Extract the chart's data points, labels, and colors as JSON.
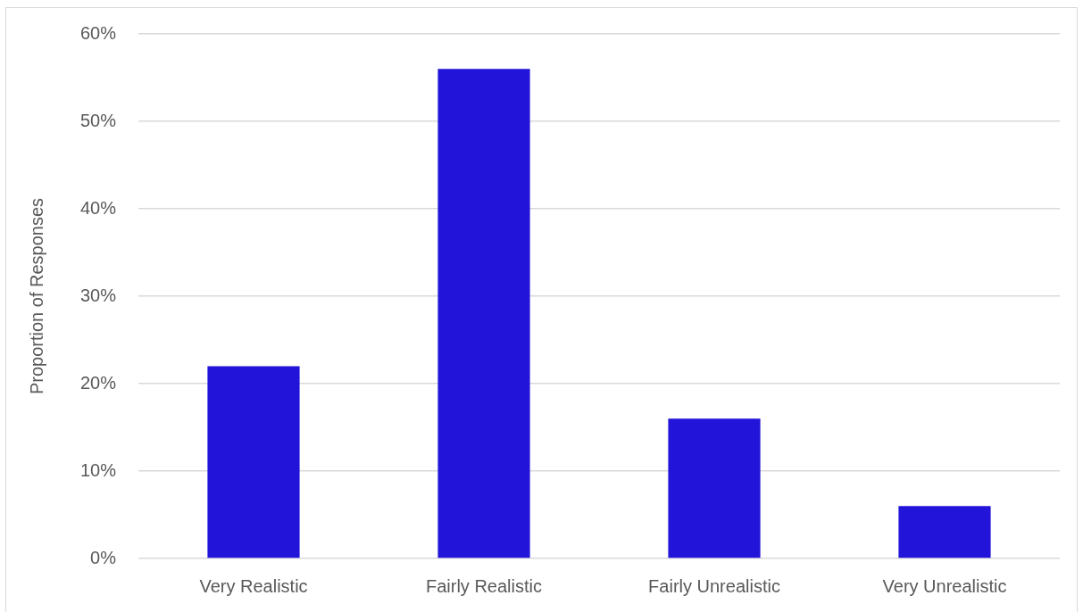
{
  "chart_data": {
    "type": "bar",
    "ylabel": "Proportion of Responses",
    "categories": [
      "Very Realistic",
      "Fairly Realistic",
      "Fairly Unrealistic",
      "Very Unrealistic"
    ],
    "values": [
      22,
      56,
      16,
      6
    ],
    "color": "#2214d9",
    "ylim": [
      0,
      60
    ],
    "yticks": [
      {
        "value": 0,
        "label": "0%"
      },
      {
        "value": 10,
        "label": "10%"
      },
      {
        "value": 20,
        "label": "20%"
      },
      {
        "value": 30,
        "label": "30%"
      },
      {
        "value": 40,
        "label": "40%"
      },
      {
        "value": 50,
        "label": "50%"
      },
      {
        "value": 60,
        "label": "60%"
      }
    ],
    "grid": "y"
  }
}
